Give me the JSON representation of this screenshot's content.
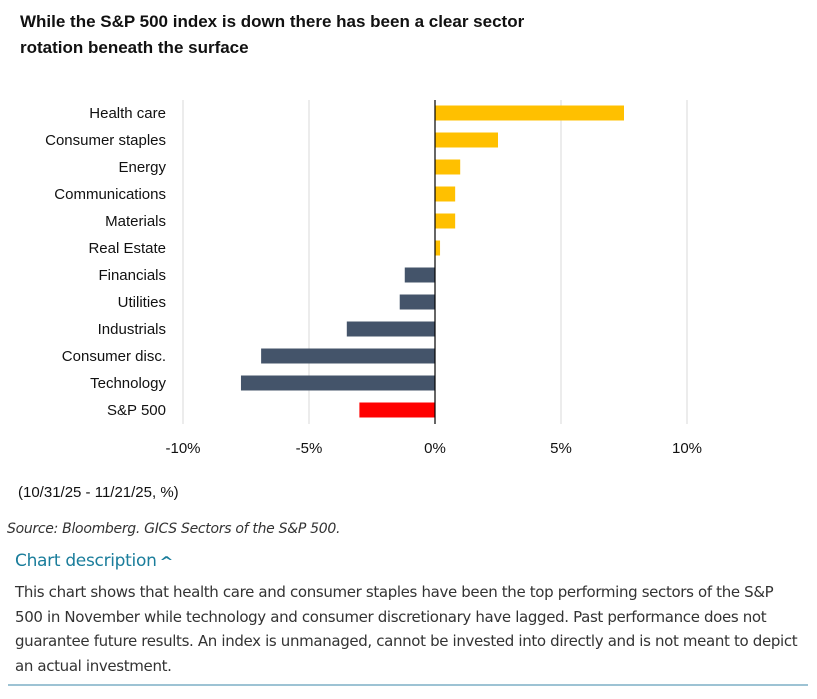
{
  "title": "While the S&P 500 index is down there has been a clear sector rotation beneath the surface",
  "note": "(10/31/25 - 11/21/25, %)",
  "source": "Source: Bloomberg. GICS Sectors of the S&P 500.",
  "description_toggle": "Chart description",
  "description_text": "This chart shows that health care and consumer staples have been the top performing sectors of the S&P 500 in November while technology and consumer discretionary have lagged. Past performance does not guarantee future results. An index is unmanaged, cannot be invested into directly and is not meant to depict an actual investment.",
  "colors": {
    "positive": "#FFC000",
    "negative": "#44546A",
    "index": "#FF0000",
    "link": "#1a7d9b"
  },
  "chart_data": {
    "type": "bar",
    "orientation": "horizontal",
    "categories": [
      "Health care",
      "Consumer staples",
      "Energy",
      "Communications",
      "Materials",
      "Real Estate",
      "Financials",
      "Utilities",
      "Industrials",
      "Consumer disc.",
      "Technology",
      "S&P 500"
    ],
    "values": [
      7.5,
      2.5,
      1.0,
      0.8,
      0.8,
      0.2,
      -1.2,
      -1.4,
      -3.5,
      -6.9,
      -7.7,
      -3.0
    ],
    "xlim": [
      -10,
      10
    ],
    "xticks": [
      -10,
      -5,
      0,
      5,
      10
    ],
    "xtick_labels": [
      "-10%",
      "-5%",
      "0%",
      "5%",
      "10%"
    ],
    "grid": true
  }
}
